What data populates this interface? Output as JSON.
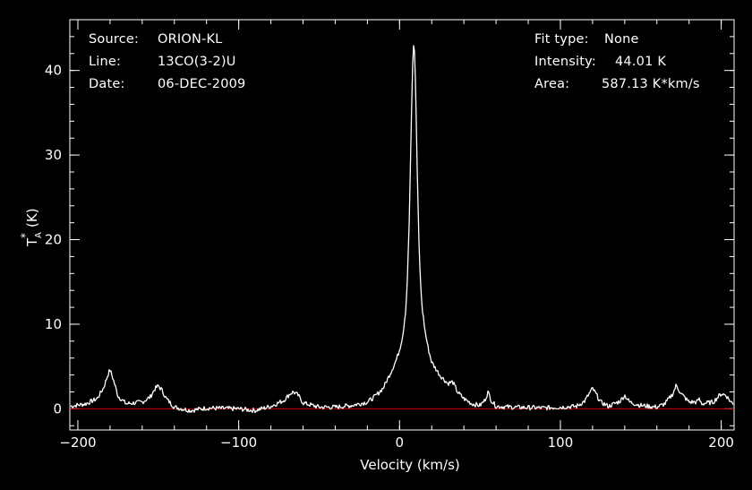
{
  "info_left": {
    "source_label": "Source:",
    "source_value": "ORION-KL",
    "line_label": "Line:",
    "line_value": "13CO(3-2)U",
    "date_label": "Date:",
    "date_value": "06-DEC-2009"
  },
  "info_right": {
    "fit_label": "Fit type:",
    "fit_value": "None",
    "intensity_label": "Intensity:",
    "intensity_value": "44.01 K",
    "area_label": "Area:",
    "area_value": "587.13 K*km/s"
  },
  "colors": {
    "background": "#000000",
    "axes": "#ffffff",
    "spectrum": "#ffffff",
    "baseline": "#cc0000"
  },
  "chart_data": {
    "type": "line",
    "title": "",
    "xlabel": "Velocity (km/s)",
    "ylabel_main": "T",
    "ylabel_sup": "*",
    "ylabel_sub": "A",
    "ylabel_unit": "(K)",
    "xlim": [
      -205,
      208
    ],
    "ylim": [
      -2.5,
      46
    ],
    "xticks": [
      -200,
      -100,
      0,
      100,
      200
    ],
    "xtick_labels": [
      "−200",
      "−100",
      "0",
      "100",
      "200"
    ],
    "yticks": [
      0,
      10,
      20,
      30,
      40
    ],
    "ytick_labels": [
      "0",
      "10",
      "20",
      "30",
      "40"
    ],
    "baseline": 0,
    "series": [
      {
        "x": [
          -205,
          -195,
          -188,
          -184,
          -181,
          -180,
          -178,
          -175,
          -170,
          -160,
          -155,
          -152,
          -150,
          -148,
          -145,
          -140,
          -130,
          -120,
          -100,
          -90,
          -80,
          -72,
          -68,
          -66,
          -63,
          -60,
          -50,
          -40,
          -30,
          -20,
          -15,
          -10,
          -5,
          -2,
          0,
          2,
          4,
          5,
          6,
          7,
          8,
          9,
          10,
          11,
          12,
          13,
          14,
          16,
          18,
          20,
          25,
          30,
          33,
          36,
          40,
          45,
          50,
          53,
          55,
          57,
          60,
          70,
          90,
          110,
          115,
          118,
          120,
          122,
          125,
          130,
          137,
          140,
          143,
          150,
          160,
          165,
          170,
          172,
          175,
          180,
          185,
          186,
          188,
          195,
          200,
          203,
          206,
          208
        ],
        "y": [
          0.3,
          0.6,
          1.2,
          2.5,
          4.2,
          4.6,
          3.5,
          1.5,
          0.6,
          0.8,
          1.4,
          2.4,
          2.7,
          2.3,
          1.2,
          0.2,
          -0.2,
          0.1,
          0.0,
          -0.2,
          0.3,
          1.0,
          1.8,
          2.0,
          1.6,
          0.7,
          0.2,
          0.2,
          0.4,
          0.8,
          1.5,
          2.5,
          4.5,
          5.8,
          7.0,
          8.7,
          12.0,
          16.0,
          22.0,
          31.0,
          40.0,
          44.0,
          38.0,
          28.0,
          20.0,
          15.0,
          12.0,
          9.0,
          7.0,
          5.5,
          4.0,
          3.0,
          3.2,
          2.0,
          1.2,
          0.6,
          0.4,
          1.0,
          2.0,
          1.0,
          0.3,
          0.2,
          0.1,
          0.3,
          0.9,
          1.8,
          2.4,
          1.8,
          0.8,
          0.3,
          0.9,
          1.6,
          0.8,
          0.4,
          0.2,
          0.6,
          1.8,
          2.8,
          1.8,
          0.8,
          0.8,
          1.2,
          0.6,
          0.8,
          1.8,
          1.6,
          0.8,
          0.6
        ]
      }
    ]
  }
}
